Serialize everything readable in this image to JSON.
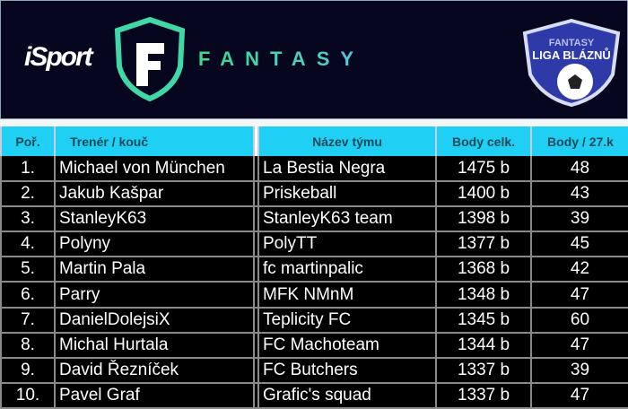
{
  "header": {
    "isport_logo": "iSport",
    "fantasy_logo": "FANTASY",
    "liga_logo": {
      "line1": "FANTASY",
      "line2": "LIGA BLÁZNŮ"
    },
    "colors": {
      "banner": "#06061f",
      "header_row": "#1fcff4",
      "accent": "#3ed98a"
    }
  },
  "table": {
    "columns": [
      "Poř.",
      "Trenér / kouč",
      "Název týmu",
      "Body celk.",
      "Body / 27.k"
    ],
    "rows": [
      {
        "rank": "1.",
        "coach": "Michael von München",
        "team": "La Bestia Negra",
        "total": "1475 b",
        "round": "48"
      },
      {
        "rank": "2.",
        "coach": "Jakub Kašpar",
        "team": "Priskeball",
        "total": "1400 b",
        "round": "43"
      },
      {
        "rank": "3.",
        "coach": "StanleyK63",
        "team": "StanleyK63 team",
        "total": "1398 b",
        "round": "39"
      },
      {
        "rank": "4.",
        "coach": "Polyny",
        "team": "PolyTT",
        "total": "1377 b",
        "round": "45"
      },
      {
        "rank": "5.",
        "coach": "Martin Pala",
        "team": "fc martinpalic",
        "total": "1368 b",
        "round": "42"
      },
      {
        "rank": "6.",
        "coach": "Parry",
        "team": "MFK NMnM",
        "total": "1348 b",
        "round": "47"
      },
      {
        "rank": "7.",
        "coach": "DanielDolejsiX",
        "team": "Teplicity FC",
        "total": "1345 b",
        "round": "60"
      },
      {
        "rank": "8.",
        "coach": "Michal Hurtala",
        "team": "FC Machoteam",
        "total": "1344 b",
        "round": "47"
      },
      {
        "rank": "9.",
        "coach": "David Řezníček",
        "team": "FC Butchers",
        "total": "1337 b",
        "round": "39"
      },
      {
        "rank": "10.",
        "coach": "Pavel Graf",
        "team": "Grafic's squad",
        "total": "1337 b",
        "round": "47"
      }
    ]
  }
}
